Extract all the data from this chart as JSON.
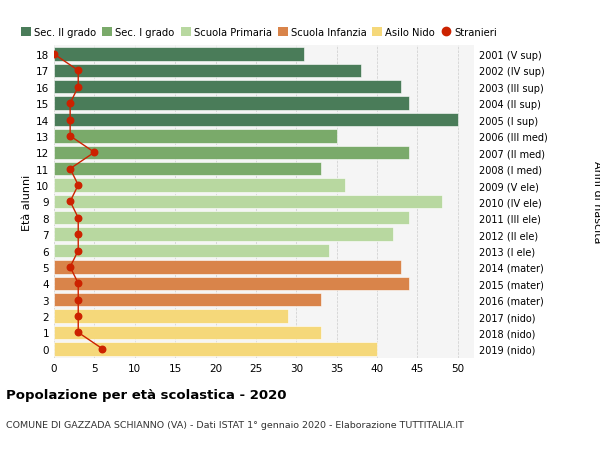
{
  "ages": [
    18,
    17,
    16,
    15,
    14,
    13,
    12,
    11,
    10,
    9,
    8,
    7,
    6,
    5,
    4,
    3,
    2,
    1,
    0
  ],
  "years": [
    "2001 (V sup)",
    "2002 (IV sup)",
    "2003 (III sup)",
    "2004 (II sup)",
    "2005 (I sup)",
    "2006 (III med)",
    "2007 (II med)",
    "2008 (I med)",
    "2009 (V ele)",
    "2010 (IV ele)",
    "2011 (III ele)",
    "2012 (II ele)",
    "2013 (I ele)",
    "2014 (mater)",
    "2015 (mater)",
    "2016 (mater)",
    "2017 (nido)",
    "2018 (nido)",
    "2019 (nido)"
  ],
  "bar_values": [
    31,
    38,
    43,
    44,
    50,
    35,
    44,
    33,
    36,
    48,
    44,
    42,
    34,
    43,
    44,
    33,
    29,
    33,
    40
  ],
  "bar_colors": [
    "#4a7c59",
    "#4a7c59",
    "#4a7c59",
    "#4a7c59",
    "#4a7c59",
    "#7aaa6a",
    "#7aaa6a",
    "#7aaa6a",
    "#b8d8a0",
    "#b8d8a0",
    "#b8d8a0",
    "#b8d8a0",
    "#b8d8a0",
    "#d9844a",
    "#d9844a",
    "#d9844a",
    "#f5d87a",
    "#f5d87a",
    "#f5d87a"
  ],
  "stranieri_values": [
    0,
    3,
    3,
    2,
    2,
    2,
    5,
    2,
    3,
    2,
    3,
    3,
    3,
    2,
    3,
    3,
    3,
    3,
    6
  ],
  "legend_labels": [
    "Sec. II grado",
    "Sec. I grado",
    "Scuola Primaria",
    "Scuola Infanzia",
    "Asilo Nido",
    "Stranieri"
  ],
  "legend_colors": [
    "#4a7c59",
    "#7aaa6a",
    "#b8d8a0",
    "#d9844a",
    "#f5d87a",
    "#cc2200"
  ],
  "title": "Popolazione per età scolastica - 2020",
  "subtitle": "COMUNE DI GAZZADA SCHIANNO (VA) - Dati ISTAT 1° gennaio 2020 - Elaborazione TUTTITALIA.IT",
  "ylabel": "Età alunni",
  "right_ylabel": "Anni di nascita",
  "xlim": [
    0,
    52
  ],
  "ylim": [
    -0.55,
    18.55
  ],
  "xticks": [
    0,
    5,
    10,
    15,
    20,
    25,
    30,
    35,
    40,
    45,
    50
  ],
  "plot_bg": "#f5f5f5",
  "fig_bg": "#ffffff",
  "grid_color": "#cccccc",
  "bar_height": 0.82
}
